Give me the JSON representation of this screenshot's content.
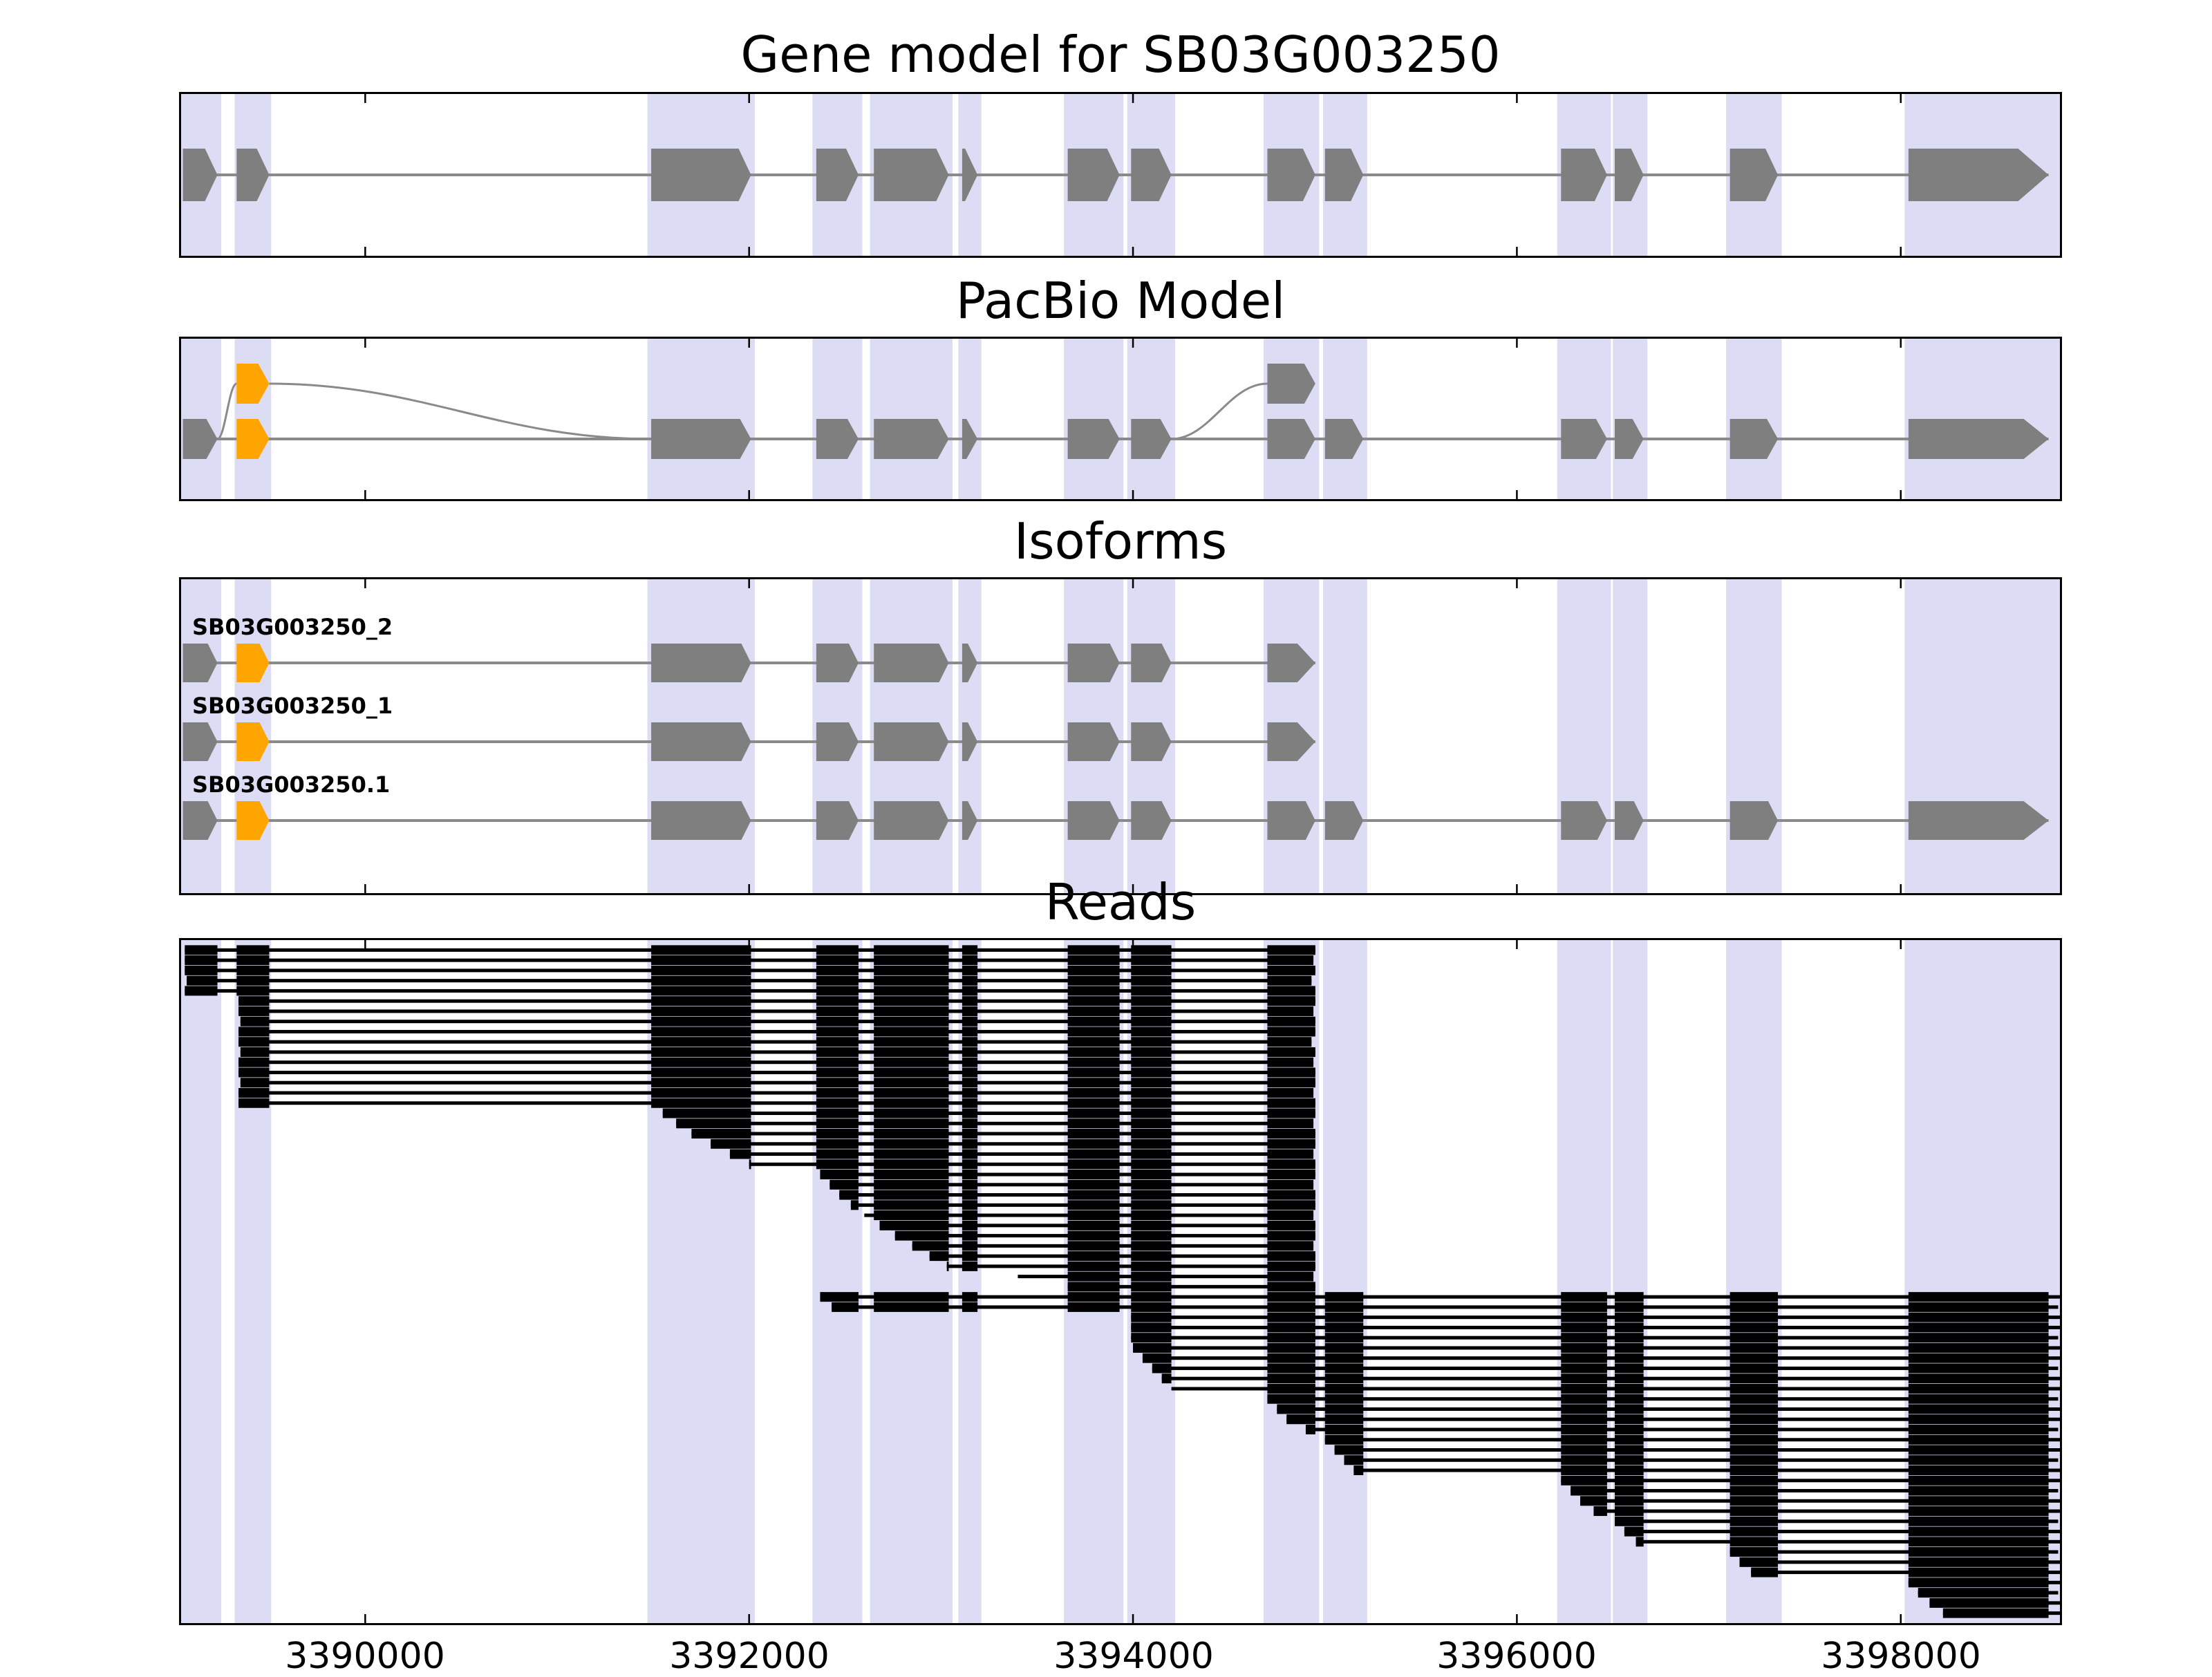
{
  "figure": {
    "panels": [
      {
        "id": "gene_model",
        "title": "Gene model for SB03G003250"
      },
      {
        "id": "pacbio",
        "title": "PacBio Model"
      },
      {
        "id": "isoforms",
        "title": "Isoforms"
      },
      {
        "id": "reads",
        "title": "Reads"
      }
    ]
  },
  "colors": {
    "band": "#dcdcf4",
    "exon_gray": "#7f7f7f",
    "exon_orange": "#ffa500",
    "line": "#8a8a8a",
    "read": "#000000",
    "frame": "#000000"
  },
  "chart_data": {
    "type": "gene-model-browser",
    "gene": "SB03G003250",
    "x_axis": {
      "xlim": [
        3389030,
        3398840
      ],
      "ticks": [
        3390000,
        3392000,
        3394000,
        3396000,
        3398000
      ],
      "tick_labels": [
        "3390000",
        "3392000",
        "3394000",
        "3396000",
        "3398000"
      ]
    },
    "highlight_bands": [
      [
        3389040,
        3389250
      ],
      [
        3389320,
        3389510
      ],
      [
        3391470,
        3392030
      ],
      [
        3392330,
        3392590
      ],
      [
        3392630,
        3393060
      ],
      [
        3393090,
        3393210
      ],
      [
        3393640,
        3393950
      ],
      [
        3393970,
        3394220
      ],
      [
        3394680,
        3394970
      ],
      [
        3394990,
        3395220
      ],
      [
        3396210,
        3396490
      ],
      [
        3396500,
        3396680
      ],
      [
        3397090,
        3397380
      ],
      [
        3398020,
        3398840
      ]
    ],
    "gene_model": {
      "label": "SB03G003250",
      "strand": "+",
      "exons": [
        [
          3389050,
          3389230
        ],
        [
          3389330,
          3389500
        ],
        [
          3391490,
          3392010
        ],
        [
          3392350,
          3392570
        ],
        [
          3392650,
          3393040
        ],
        [
          3393110,
          3393190
        ],
        [
          3393660,
          3393930
        ],
        [
          3393990,
          3394200
        ],
        [
          3394700,
          3394950
        ],
        [
          3395000,
          3395200
        ],
        [
          3396230,
          3396470
        ],
        [
          3396510,
          3396660
        ],
        [
          3397110,
          3397360
        ],
        [
          3398040,
          3398770
        ]
      ]
    },
    "pacbio_model": {
      "orange_exon_indices": [
        1
      ],
      "elevated_exons": [
        {
          "start": 3389330,
          "end": 3389500,
          "color": "orange"
        },
        {
          "start": 3394700,
          "end": 3394950,
          "color": "gray"
        }
      ],
      "splice_curves": [
        {
          "x1": 3389230,
          "from": "main",
          "x2": 3389330,
          "to": "elevated"
        },
        {
          "x1": 3389500,
          "from": "elevated",
          "x2": 3391490,
          "to": "main"
        },
        {
          "x1": 3394200,
          "from": "main",
          "x2": 3394700,
          "to": "elevated"
        }
      ]
    },
    "isoforms": [
      {
        "label": "SB03G003250_2",
        "exon_range": [
          0,
          8
        ],
        "orange_exon_indices": [
          1
        ]
      },
      {
        "label": "SB03G003250_1",
        "exon_range": [
          0,
          8
        ],
        "orange_exon_indices": [
          1
        ]
      },
      {
        "label": "SB03G003250.1",
        "exon_range": [
          0,
          13
        ],
        "orange_exon_indices": [
          1
        ]
      }
    ],
    "reads": [
      [
        3389060,
        3394950
      ],
      [
        3389060,
        3394940
      ],
      [
        3389060,
        3394950
      ],
      [
        3389070,
        3394930
      ],
      [
        3389060,
        3394950
      ],
      [
        3389340,
        3394950
      ],
      [
        3389340,
        3394940
      ],
      [
        3389350,
        3394950
      ],
      [
        3389340,
        3394950
      ],
      [
        3389340,
        3394930
      ],
      [
        3389350,
        3394950
      ],
      [
        3389340,
        3394940
      ],
      [
        3389340,
        3394950
      ],
      [
        3389350,
        3394950
      ],
      [
        3389340,
        3394940
      ],
      [
        3389340,
        3394950
      ],
      [
        3391550,
        3394950
      ],
      [
        3391620,
        3394940
      ],
      [
        3391700,
        3394950
      ],
      [
        3391800,
        3394950
      ],
      [
        3391900,
        3394940
      ],
      [
        3392000,
        3394950
      ],
      [
        3392370,
        3394950
      ],
      [
        3392420,
        3394940
      ],
      [
        3392470,
        3394950
      ],
      [
        3392530,
        3394950
      ],
      [
        3392600,
        3394940
      ],
      [
        3392680,
        3394950
      ],
      [
        3392760,
        3394950
      ],
      [
        3392850,
        3394940
      ],
      [
        3392940,
        3394950
      ],
      [
        3393030,
        3394950
      ],
      [
        3393400,
        3394940
      ],
      [
        3393660,
        3394950
      ],
      [
        3392370,
        3398830
      ],
      [
        3392430,
        3398820
      ],
      [
        3393990,
        3398830
      ],
      [
        3393990,
        3398830
      ],
      [
        3393990,
        3398820
      ],
      [
        3394000,
        3398830
      ],
      [
        3394050,
        3398830
      ],
      [
        3394100,
        3398820
      ],
      [
        3394150,
        3398830
      ],
      [
        3394200,
        3398830
      ],
      [
        3394700,
        3398820
      ],
      [
        3394750,
        3398830
      ],
      [
        3394800,
        3398830
      ],
      [
        3394900,
        3398820
      ],
      [
        3395000,
        3398830
      ],
      [
        3395050,
        3398830
      ],
      [
        3395100,
        3398820
      ],
      [
        3395150,
        3398830
      ],
      [
        3396230,
        3398830
      ],
      [
        3396280,
        3398820
      ],
      [
        3396330,
        3398830
      ],
      [
        3396400,
        3398830
      ],
      [
        3396510,
        3398820
      ],
      [
        3396560,
        3398830
      ],
      [
        3396620,
        3398830
      ],
      [
        3397110,
        3398820
      ],
      [
        3397160,
        3398830
      ],
      [
        3397220,
        3398830
      ],
      [
        3398040,
        3398830
      ],
      [
        3398090,
        3398820
      ],
      [
        3398150,
        3398830
      ],
      [
        3398220,
        3398830
      ]
    ]
  }
}
